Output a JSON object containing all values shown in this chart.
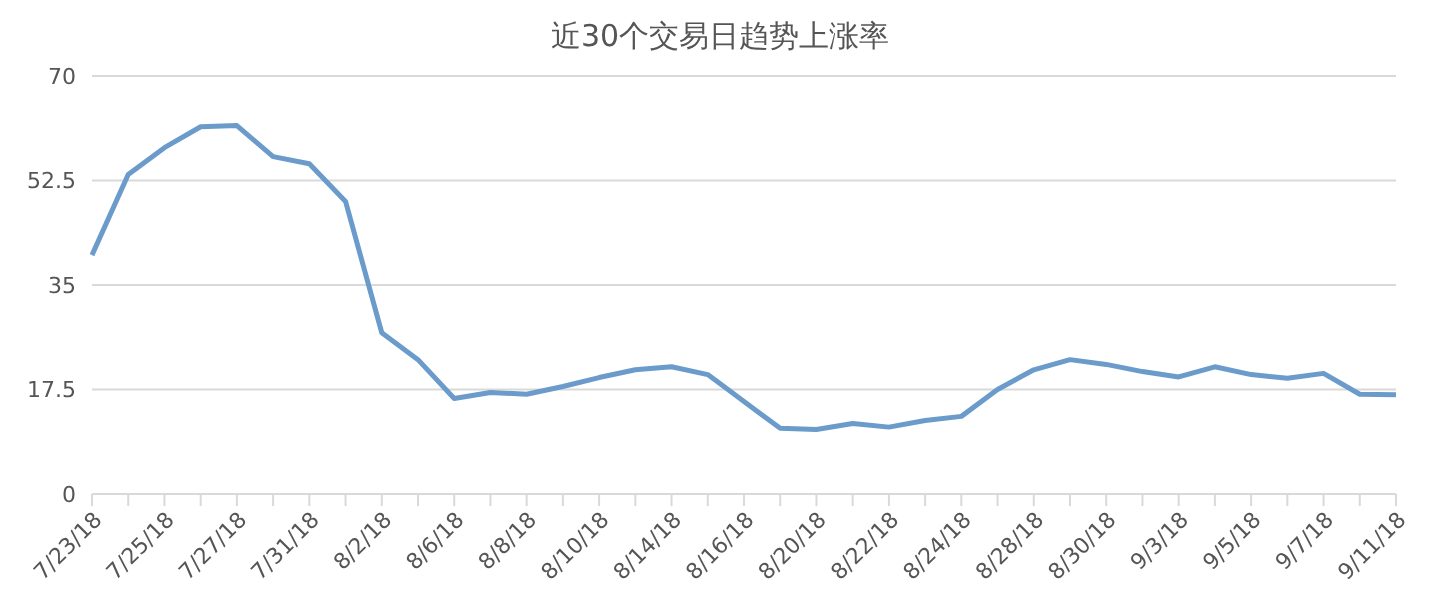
{
  "chart_data": {
    "type": "line",
    "title": "近30个交易日趋势上涨率",
    "categories": [
      "7/23/18",
      null,
      "7/25/18",
      null,
      "7/27/18",
      null,
      "7/31/18",
      null,
      "8/2/18",
      null,
      "8/6/18",
      null,
      "8/8/18",
      null,
      "8/10/18",
      null,
      "8/14/18",
      null,
      "8/16/18",
      null,
      "8/20/18",
      null,
      "8/22/18",
      null,
      "8/24/18",
      null,
      "8/28/18",
      null,
      "8/30/18",
      null,
      "9/3/18",
      null,
      "9/5/18",
      null,
      "9/7/18",
      null,
      "9/11/18"
    ],
    "series": [
      {
        "color": "#6a9bcb",
        "values": [
          40,
          53.5,
          58,
          61.5,
          61.7,
          56.5,
          55.3,
          49,
          27,
          22.5,
          16,
          17,
          16.7,
          18,
          19.5,
          20.8,
          21.3,
          20,
          15.5,
          11,
          10.8,
          11.8,
          11.2,
          12.3,
          13,
          17.5,
          20.8,
          22.5,
          21.7,
          20.5,
          19.6,
          21.3,
          20,
          19.4,
          20.2,
          16.7,
          16.6
        ]
      }
    ],
    "ylim": [
      0,
      70
    ],
    "yticks": [
      0,
      17.5,
      35,
      52.5,
      70
    ],
    "grid": "y",
    "legend": false,
    "marker": "none",
    "line_style": "solid"
  }
}
